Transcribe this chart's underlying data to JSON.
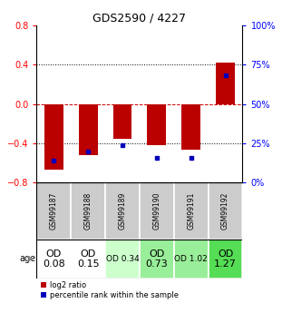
{
  "title": "GDS2590 / 4227",
  "samples": [
    "GSM99187",
    "GSM99188",
    "GSM99189",
    "GSM99190",
    "GSM99191",
    "GSM99192"
  ],
  "log2_ratios": [
    -0.67,
    -0.52,
    -0.35,
    -0.42,
    -0.46,
    0.42
  ],
  "percentile_ranks": [
    14,
    20,
    24,
    16,
    16,
    68
  ],
  "ylim": [
    -0.8,
    0.8
  ],
  "yticks_left": [
    -0.8,
    -0.4,
    0.0,
    0.4,
    0.8
  ],
  "yticks_right": [
    0,
    25,
    50,
    75,
    100
  ],
  "bar_color_red": "#bb0000",
  "bar_color_blue": "#0000bb",
  "age_labels": [
    "OD\n0.08",
    "OD\n0.15",
    "OD 0.34",
    "OD\n0.73",
    "OD 1.02",
    "OD\n1.27"
  ],
  "age_bg_colors": [
    "#ffffff",
    "#ffffff",
    "#ccffcc",
    "#99ee99",
    "#99ee99",
    "#55dd55"
  ],
  "age_font_sizes": [
    8,
    8,
    6.5,
    8,
    6.5,
    8
  ],
  "sample_bg_color": "#cccccc",
  "legend_red_label": "log2 ratio",
  "legend_blue_label": "percentile rank within the sample",
  "bar_width": 0.55
}
